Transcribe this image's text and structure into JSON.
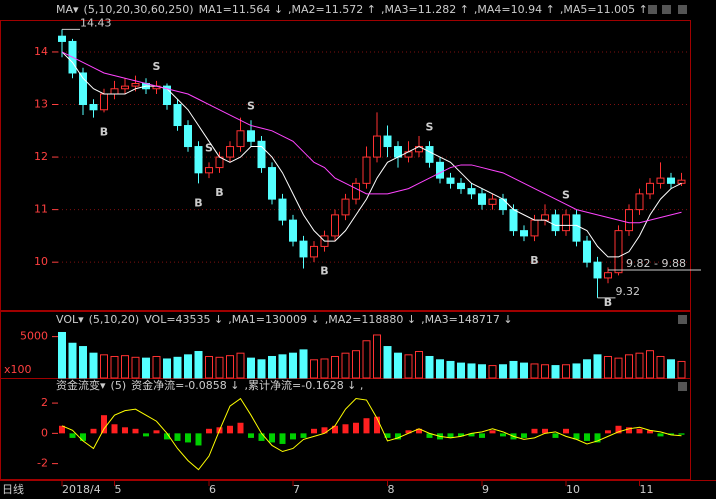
{
  "chart_data": [
    {
      "type": "candlestick",
      "header": [
        {
          "text": "MA▾",
          "color": "#ffffff"
        },
        {
          "text": "(5,10,20,30,60,250)",
          "color": "#ffff00"
        },
        {
          "text": "MA1=11.564 ↓",
          "color": "#ffffff"
        },
        {
          "text": ",MA2=11.572 ↑",
          "color": "#ffff00"
        },
        {
          "text": ",MA3=11.282 ↑",
          "color": "#ff44ff"
        },
        {
          "text": ",MA4=10.94 ↑",
          "color": "#ff4444"
        },
        {
          "text": ",MA5=11.005 ↑",
          "color": "#00e5ff"
        }
      ],
      "categories": [
        "2018/4",
        null,
        null,
        null,
        null,
        "5",
        null,
        null,
        null,
        null,
        null,
        null,
        null,
        null,
        "6",
        null,
        null,
        null,
        null,
        null,
        null,
        null,
        "7",
        null,
        null,
        null,
        null,
        null,
        null,
        null,
        null,
        "8",
        null,
        null,
        null,
        null,
        null,
        null,
        null,
        null,
        "9",
        null,
        null,
        null,
        null,
        null,
        null,
        null,
        "10",
        null,
        null,
        null,
        null,
        null,
        null,
        "11",
        null,
        null,
        null,
        null
      ],
      "timeframe": "日线",
      "candles": [
        [
          14.3,
          14.43,
          13.9,
          14.2
        ],
        [
          14.2,
          14.25,
          13.5,
          13.6
        ],
        [
          13.6,
          13.7,
          12.8,
          13.0
        ],
        [
          13.0,
          13.1,
          12.75,
          12.9
        ],
        [
          12.9,
          13.3,
          12.85,
          13.2
        ],
        [
          13.2,
          13.45,
          13.1,
          13.3
        ],
        [
          13.3,
          13.5,
          13.2,
          13.35
        ],
        [
          13.35,
          13.55,
          13.25,
          13.4
        ],
        [
          13.4,
          13.5,
          13.2,
          13.3
        ],
        [
          13.3,
          13.45,
          13.2,
          13.35
        ],
        [
          13.35,
          13.4,
          12.9,
          13.0
        ],
        [
          13.0,
          13.1,
          12.5,
          12.6
        ],
        [
          12.6,
          12.7,
          12.1,
          12.2
        ],
        [
          12.2,
          12.3,
          11.5,
          11.7
        ],
        [
          11.7,
          11.9,
          11.6,
          11.8
        ],
        [
          11.8,
          12.1,
          11.7,
          12.0
        ],
        [
          12.0,
          12.3,
          11.9,
          12.2
        ],
        [
          12.2,
          12.75,
          12.1,
          12.5
        ],
        [
          12.5,
          12.7,
          12.2,
          12.3
        ],
        [
          12.3,
          12.4,
          11.7,
          11.8
        ],
        [
          11.8,
          11.9,
          11.1,
          11.2
        ],
        [
          11.2,
          11.3,
          10.7,
          10.8
        ],
        [
          10.8,
          10.9,
          10.3,
          10.4
        ],
        [
          10.4,
          10.5,
          9.88,
          10.1
        ],
        [
          10.1,
          10.4,
          10.0,
          10.3
        ],
        [
          10.3,
          10.6,
          10.2,
          10.5
        ],
        [
          10.5,
          11.0,
          10.4,
          10.9
        ],
        [
          10.9,
          11.3,
          10.8,
          11.2
        ],
        [
          11.2,
          11.6,
          11.1,
          11.5
        ],
        [
          11.5,
          12.2,
          11.4,
          12.0
        ],
        [
          12.0,
          12.85,
          11.9,
          12.4
        ],
        [
          12.4,
          12.6,
          12.0,
          12.2
        ],
        [
          12.2,
          12.3,
          11.8,
          12.0
        ],
        [
          12.0,
          12.3,
          11.9,
          12.1
        ],
        [
          12.1,
          12.4,
          12.0,
          12.2
        ],
        [
          12.2,
          12.3,
          11.8,
          11.9
        ],
        [
          11.9,
          12.0,
          11.5,
          11.6
        ],
        [
          11.6,
          11.7,
          11.4,
          11.5
        ],
        [
          11.5,
          11.6,
          11.3,
          11.4
        ],
        [
          11.4,
          11.5,
          11.2,
          11.3
        ],
        [
          11.3,
          11.4,
          11.0,
          11.1
        ],
        [
          11.1,
          11.3,
          11.0,
          11.2
        ],
        [
          11.2,
          11.3,
          10.9,
          11.0
        ],
        [
          11.0,
          11.1,
          10.5,
          10.6
        ],
        [
          10.6,
          10.7,
          10.4,
          10.5
        ],
        [
          10.5,
          10.9,
          10.4,
          10.8
        ],
        [
          10.8,
          11.1,
          10.7,
          10.9
        ],
        [
          10.9,
          11.0,
          10.5,
          10.6
        ],
        [
          10.6,
          11.0,
          10.5,
          10.9
        ],
        [
          10.9,
          11.0,
          10.3,
          10.4
        ],
        [
          10.4,
          10.5,
          9.9,
          10.0
        ],
        [
          10.0,
          10.1,
          9.32,
          9.7
        ],
        [
          9.7,
          9.9,
          9.6,
          9.8
        ],
        [
          9.8,
          10.7,
          9.75,
          10.6
        ],
        [
          10.6,
          11.1,
          10.5,
          11.0
        ],
        [
          11.0,
          11.4,
          10.9,
          11.3
        ],
        [
          11.3,
          11.6,
          11.2,
          11.5
        ],
        [
          11.5,
          11.9,
          11.4,
          11.6
        ],
        [
          11.6,
          11.7,
          11.4,
          11.5
        ],
        [
          11.5,
          11.7,
          11.45,
          11.56
        ]
      ],
      "up_color": "#ff3232",
      "down_color": "#54ffff",
      "lines": [
        {
          "color": "#ffffff",
          "values": [
            14.0,
            13.8,
            13.5,
            13.3,
            13.2,
            13.2,
            13.2,
            13.3,
            13.35,
            13.35,
            13.3,
            13.1,
            12.9,
            12.6,
            12.3,
            12.0,
            11.9,
            12.0,
            12.2,
            12.2,
            12.0,
            11.7,
            11.3,
            10.9,
            10.6,
            10.4,
            10.4,
            10.6,
            10.9,
            11.2,
            11.6,
            11.9,
            12.0,
            12.1,
            12.2,
            12.1,
            12.0,
            11.9,
            11.7,
            11.5,
            11.4,
            11.3,
            11.2,
            11.0,
            10.9,
            10.8,
            10.8,
            10.7,
            10.7,
            10.7,
            10.6,
            10.3,
            10.1,
            10.1,
            10.2,
            10.5,
            10.9,
            11.2,
            11.4,
            11.5
          ]
        },
        {
          "color": "#ff44ff",
          "values": [
            14.0,
            13.9,
            13.8,
            13.7,
            13.6,
            13.55,
            13.5,
            13.45,
            13.4,
            13.35,
            13.3,
            13.25,
            13.2,
            13.1,
            13.0,
            12.9,
            12.8,
            12.7,
            12.6,
            12.55,
            12.5,
            12.4,
            12.3,
            12.1,
            11.9,
            11.8,
            11.6,
            11.5,
            11.4,
            11.3,
            11.3,
            11.3,
            11.35,
            11.4,
            11.5,
            11.6,
            11.7,
            11.8,
            11.85,
            11.85,
            11.8,
            11.75,
            11.7,
            11.6,
            11.5,
            11.4,
            11.3,
            11.2,
            11.1,
            11.0,
            10.95,
            10.9,
            10.85,
            10.8,
            10.75,
            10.75,
            10.8,
            10.85,
            10.9,
            10.95
          ]
        }
      ],
      "signals": [
        null,
        null,
        null,
        null,
        "B",
        null,
        null,
        null,
        null,
        "S",
        null,
        null,
        null,
        "B",
        "S",
        "B",
        null,
        null,
        "S",
        null,
        null,
        null,
        null,
        null,
        null,
        "B",
        null,
        null,
        null,
        null,
        null,
        null,
        null,
        null,
        null,
        "S",
        null,
        null,
        null,
        null,
        null,
        null,
        null,
        null,
        null,
        "B",
        null,
        null,
        "S",
        null,
        null,
        null,
        "B",
        null,
        null,
        null,
        null,
        null,
        null,
        null
      ],
      "annotations": [
        {
          "text": "14.43",
          "index": 0,
          "value": 14.43
        },
        {
          "text": "9.82 - 9.88",
          "index": 52,
          "value": 9.85
        },
        {
          "text": "9.32",
          "index": 51,
          "value": 9.32
        }
      ],
      "ylim": [
        9.09,
        14.57
      ],
      "yticks": [
        10,
        11,
        12,
        13,
        14
      ],
      "grid": true
    },
    {
      "type": "bar",
      "header": [
        {
          "text": "VOL▾",
          "color": "#ffffff"
        },
        {
          "text": "(5,10,20)",
          "color": "#ffff00"
        },
        {
          "text": "VOL=43535 ↓",
          "color": "#ffffff"
        },
        {
          "text": ",MA1=130009 ↓",
          "color": "#ffff00"
        },
        {
          "text": ",MA2=118880 ↓",
          "color": "#ff44ff"
        },
        {
          "text": ",MA3=148717 ↓",
          "color": "#00e5ff"
        }
      ],
      "unit": "x100",
      "values": [
        5500,
        4200,
        3800,
        3000,
        2800,
        2600,
        2700,
        2500,
        2400,
        2600,
        2300,
        2500,
        2800,
        3200,
        2600,
        2500,
        2700,
        3000,
        2400,
        2200,
        2600,
        2800,
        3000,
        3400,
        2200,
        2300,
        2600,
        3000,
        3300,
        4500,
        5200,
        3800,
        3000,
        2800,
        3200,
        2600,
        2200,
        2000,
        1800,
        1700,
        1600,
        1500,
        1600,
        2000,
        1800,
        1700,
        1600,
        1500,
        1600,
        1700,
        2200,
        2800,
        2600,
        2400,
        2800,
        3000,
        3300,
        2600,
        2200,
        2000
      ],
      "ylim": [
        0,
        5800
      ],
      "yticks": [
        5000
      ]
    },
    {
      "type": "bar-line",
      "header": [
        {
          "text": "资金流变▾",
          "color": "#ffffff"
        },
        {
          "text": "(5)",
          "color": "#ffffff"
        },
        {
          "text": "资金净流=-0.0858 ↓",
          "color": "#ffffff"
        },
        {
          "text": ",累计净流=-0.1628 ↓ ,",
          "color": "#ffff00"
        }
      ],
      "values": [
        0.5,
        -0.3,
        -0.5,
        0.3,
        1.2,
        0.6,
        0.4,
        0.3,
        -0.2,
        0.2,
        -0.4,
        -0.5,
        -0.6,
        -0.8,
        0.3,
        0.4,
        0.5,
        0.7,
        -0.3,
        -0.5,
        -0.6,
        -0.7,
        -0.4,
        -0.3,
        0.3,
        0.4,
        0.5,
        0.6,
        0.7,
        1.0,
        1.1,
        -0.3,
        -0.4,
        0.2,
        0.3,
        -0.3,
        -0.4,
        -0.3,
        -0.2,
        -0.2,
        -0.3,
        0.2,
        -0.2,
        -0.4,
        -0.3,
        0.3,
        0.3,
        -0.3,
        0.3,
        -0.4,
        -0.5,
        -0.6,
        0.2,
        0.5,
        0.4,
        0.3,
        0.2,
        -0.2,
        -0.1,
        -0.09
      ],
      "line": {
        "color": "#ffff00",
        "values": [
          0.5,
          0.2,
          -0.5,
          -1.0,
          0.3,
          1.2,
          1.5,
          1.6,
          1.2,
          0.8,
          0,
          -1.0,
          -1.8,
          -2.4,
          -1.5,
          0.2,
          1.8,
          2.3,
          1.2,
          0,
          -0.8,
          -1.2,
          -1.0,
          -0.4,
          -0.2,
          0,
          0.5,
          1.6,
          2.3,
          2.2,
          1.0,
          -0.5,
          -0.3,
          0,
          0.3,
          0,
          -0.2,
          -0.3,
          -0.2,
          0,
          0.1,
          0.3,
          0.1,
          -0.2,
          -0.4,
          -0.3,
          0,
          0.1,
          -0.2,
          -0.4,
          -0.7,
          -0.5,
          -0.2,
          0.1,
          0.3,
          0.4,
          0.2,
          0.1,
          -0.1,
          -0.16
        ]
      },
      "up_color": "#ff2020",
      "down_color": "#00d000",
      "ylim": [
        -2.95,
        2.6
      ],
      "yticks": [
        -2,
        0,
        2
      ]
    }
  ]
}
